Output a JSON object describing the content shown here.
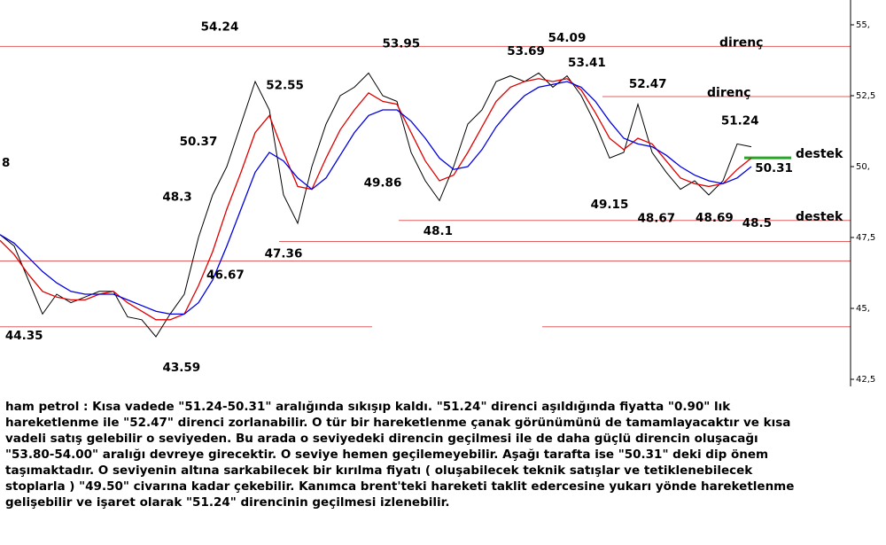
{
  "chart_data": {
    "type": "line",
    "xlim": [
      0,
      60
    ],
    "ylim": [
      42.25,
      55.875
    ],
    "yticks": [
      {
        "value": 42.5,
        "label": "42,5"
      },
      {
        "value": 45,
        "label": "45,"
      },
      {
        "value": 47.5,
        "label": "47,5"
      },
      {
        "value": 50,
        "label": "50,"
      },
      {
        "value": 52.5,
        "label": "52,5"
      },
      {
        "value": 55,
        "label": "55,"
      }
    ],
    "x": [
      0,
      1,
      2,
      3,
      4,
      5,
      6,
      7,
      8,
      9,
      10,
      11,
      12,
      13,
      14,
      15,
      16,
      17,
      18,
      19,
      20,
      21,
      22,
      23,
      24,
      25,
      26,
      27,
      28,
      29,
      30,
      31,
      32,
      33,
      34,
      35,
      36,
      37,
      38,
      39,
      40,
      41,
      42,
      43,
      44,
      45,
      46,
      47,
      48,
      49,
      50,
      51,
      52,
      53
    ],
    "series": [
      {
        "color": "#000000",
        "values": [
          47.6,
          47.2,
          46.0,
          44.8,
          45.5,
          45.2,
          45.4,
          45.6,
          45.6,
          44.7,
          44.6,
          44.0,
          44.8,
          45.5,
          47.5,
          49.0,
          50.0,
          51.5,
          53.0,
          52.0,
          49.0,
          48.0,
          50.0,
          51.5,
          52.5,
          52.8,
          53.3,
          52.5,
          52.3,
          50.5,
          49.5,
          48.8,
          50.0,
          51.5,
          52.0,
          53.0,
          53.2,
          53.0,
          53.3,
          52.8,
          53.2,
          52.5,
          51.5,
          50.3,
          50.5,
          52.2,
          50.5,
          49.8,
          49.2,
          49.5,
          49.0,
          49.5,
          50.8,
          50.7
        ]
      },
      {
        "color": "#e00000",
        "values": [
          47.4,
          46.9,
          46.2,
          45.6,
          45.4,
          45.3,
          45.3,
          45.5,
          45.6,
          45.2,
          44.9,
          44.6,
          44.6,
          44.8,
          45.8,
          47.0,
          48.5,
          49.8,
          51.2,
          51.8,
          50.5,
          49.3,
          49.2,
          50.3,
          51.3,
          52.0,
          52.6,
          52.3,
          52.2,
          51.2,
          50.2,
          49.5,
          49.7,
          50.5,
          51.4,
          52.3,
          52.8,
          53.0,
          53.1,
          53.0,
          53.1,
          52.7,
          51.9,
          51.0,
          50.6,
          51.0,
          50.8,
          50.2,
          49.6,
          49.4,
          49.3,
          49.4,
          49.9,
          50.3
        ]
      },
      {
        "color": "#0000e0",
        "values": [
          47.6,
          47.3,
          46.8,
          46.3,
          45.9,
          45.6,
          45.5,
          45.5,
          45.5,
          45.3,
          45.1,
          44.9,
          44.8,
          44.8,
          45.2,
          46.0,
          47.2,
          48.5,
          49.8,
          50.5,
          50.2,
          49.6,
          49.2,
          49.6,
          50.4,
          51.2,
          51.8,
          52.0,
          52.0,
          51.6,
          51.0,
          50.3,
          49.9,
          50.0,
          50.6,
          51.4,
          52.0,
          52.5,
          52.8,
          52.9,
          53.0,
          52.8,
          52.3,
          51.6,
          51.0,
          50.8,
          50.7,
          50.4,
          50.0,
          49.7,
          49.5,
          49.4,
          49.6,
          50.0
        ]
      }
    ],
    "levels": [
      {
        "value": 54.24,
        "label": "direnç",
        "color": "#e06060"
      },
      {
        "value": 52.47,
        "label": "direnç",
        "color": "#e06060"
      },
      {
        "value": 50.31,
        "label": "destek",
        "color": "#22aa22"
      },
      {
        "value": 48.1,
        "label": "destek",
        "color": "#e06060"
      },
      {
        "value": 47.36,
        "color": "#e06060"
      },
      {
        "value": 46.67,
        "color": "#e06060"
      },
      {
        "value": 44.35,
        "color": "#e06060"
      }
    ],
    "annotations": [
      {
        "x": 15.5,
        "value": 54.24
      },
      {
        "x": 20.1,
        "value": 52.55
      },
      {
        "x": 14,
        "value": 50.37
      },
      {
        "x": 12.5,
        "value": 48.3
      },
      {
        "x": 15.9,
        "value": 46.67
      },
      {
        "x": 20,
        "value": 47.36
      },
      {
        "x": 1.7,
        "value": 44.35
      },
      {
        "x": 12.8,
        "value": 43.59
      },
      {
        "x": 28.3,
        "value": 53.95
      },
      {
        "x": 27,
        "value": 49.86
      },
      {
        "x": 30.9,
        "value": 48.1
      },
      {
        "x": 37.1,
        "value": 53.69
      },
      {
        "x": 40,
        "value": 54.09
      },
      {
        "x": 41.4,
        "value": 53.41
      },
      {
        "x": 45.7,
        "value": 52.47
      },
      {
        "x": 43,
        "value": 49.15
      },
      {
        "x": 46.3,
        "value": 48.67
      },
      {
        "x": 50.4,
        "value": 48.69
      },
      {
        "x": 53.4,
        "value": 48.5
      },
      {
        "x": 52.2,
        "value": 51.24
      },
      {
        "x": 54.6,
        "value": 50.31
      }
    ],
    "cropped_label": "8"
  },
  "commentary": [
    "ham petrol : Kısa vadede \"51.24-50.31\" aralığında sıkışıp kaldı. \"51.24\" direnci aşıldığında fiyatta \"0.90\" lık",
    "hareketlenme ile \"52.47\" direnci zorlanabilir. O tür bir hareketlenme çanak görünümünü de tamamlayacaktır ve kısa",
    "vadeli satış gelebilir o seviyeden. Bu arada o seviyedeki direncin geçilmesi ile de daha güçlü direncin oluşacağı",
    "\"53.80-54.00\" aralığı devreye girecektir. O seviye hemen geçilemeyebilir. Aşağı tarafta ise \"50.31\" deki dip önem",
    "taşımaktadır. O seviyenin altına sarkabilecek bir kırılma fiyatı ( oluşabilecek teknik satışlar ve tetiklenebilecek",
    "stoplarla ) \"49.50\" civarına kadar çekebilir. Kanımca brent'teki hareketi taklit edercesine yukarı yönde hareketlenme",
    "gelişebilir ve işaret olarak \"51.24\" direncinin geçilmesi izlenebilir."
  ]
}
